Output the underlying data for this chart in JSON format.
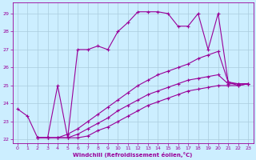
{
  "xlabel": "Windchill (Refroidissement éolien,°C)",
  "background_color": "#cceeff",
  "grid_color": "#aaccdd",
  "line_color": "#990099",
  "xlim": [
    -0.5,
    23.5
  ],
  "ylim": [
    21.8,
    29.6
  ],
  "yticks": [
    22,
    23,
    24,
    25,
    26,
    27,
    28,
    29
  ],
  "xticks": [
    0,
    1,
    2,
    3,
    4,
    5,
    6,
    7,
    8,
    9,
    10,
    11,
    12,
    13,
    14,
    15,
    16,
    17,
    18,
    19,
    20,
    21,
    22,
    23
  ],
  "lines": [
    {
      "x": [
        0,
        1,
        2,
        3,
        4,
        5,
        6,
        7,
        8,
        9,
        10,
        11,
        12,
        13,
        14,
        15,
        16,
        17,
        18,
        19,
        20,
        21,
        22,
        23
      ],
      "y": [
        23.7,
        23.3,
        22.1,
        22.1,
        25.0,
        22.1,
        27.0,
        27.0,
        27.2,
        27.0,
        28.0,
        28.5,
        29.1,
        29.1,
        29.1,
        29.0,
        28.3,
        28.3,
        29.0,
        27.0,
        29.0,
        25.2,
        25.0,
        25.1
      ]
    },
    {
      "x": [
        2,
        3,
        4,
        5,
        6,
        7,
        8,
        9,
        10,
        11,
        12,
        13,
        14,
        15,
        16,
        17,
        18,
        19,
        20,
        21,
        22,
        23
      ],
      "y": [
        22.1,
        22.1,
        22.1,
        22.3,
        22.6,
        23.0,
        23.4,
        23.8,
        24.2,
        24.6,
        25.0,
        25.3,
        25.6,
        25.8,
        26.0,
        26.2,
        26.5,
        26.7,
        26.9,
        25.2,
        25.1,
        25.1
      ]
    },
    {
      "x": [
        2,
        3,
        4,
        5,
        6,
        7,
        8,
        9,
        10,
        11,
        12,
        13,
        14,
        15,
        16,
        17,
        18,
        19,
        20,
        21,
        22,
        23
      ],
      "y": [
        22.1,
        22.1,
        22.1,
        22.1,
        22.3,
        22.6,
        22.9,
        23.2,
        23.6,
        23.9,
        24.2,
        24.5,
        24.7,
        24.9,
        25.1,
        25.3,
        25.4,
        25.5,
        25.6,
        25.1,
        25.1,
        25.1
      ]
    },
    {
      "x": [
        2,
        3,
        4,
        5,
        6,
        7,
        8,
        9,
        10,
        11,
        12,
        13,
        14,
        15,
        16,
        17,
        18,
        19,
        20,
        21,
        22,
        23
      ],
      "y": [
        22.1,
        22.1,
        22.1,
        22.1,
        22.1,
        22.2,
        22.5,
        22.7,
        23.0,
        23.3,
        23.6,
        23.9,
        24.1,
        24.3,
        24.5,
        24.7,
        24.8,
        24.9,
        25.0,
        25.0,
        25.0,
        25.1
      ]
    }
  ]
}
